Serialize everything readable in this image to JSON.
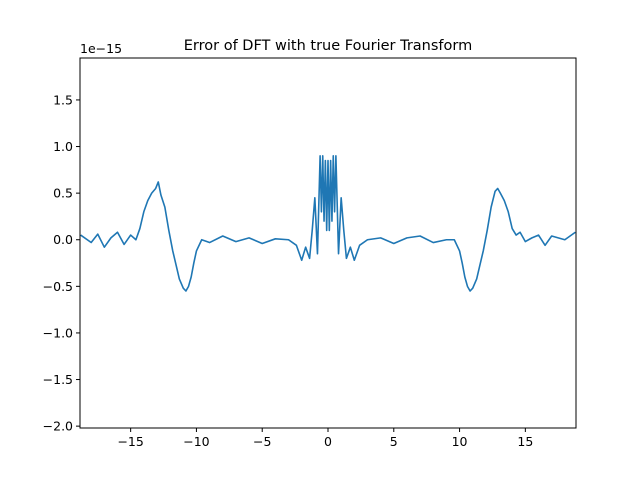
{
  "chart_data": {
    "type": "line",
    "title": "Error of DFT with true Fourier Transform",
    "xlabel": "",
    "ylabel": "",
    "y_scale_label": "1e−15",
    "xlim": [
      -18.85,
      18.85
    ],
    "ylim": [
      -2.02,
      1.95
    ],
    "x_ticks": [
      -15,
      -10,
      -5,
      0,
      5,
      10,
      15
    ],
    "x_tick_labels": [
      "−15",
      "−10",
      "−5",
      "0",
      "5",
      "10",
      "15"
    ],
    "y_ticks": [
      -2.0,
      -1.5,
      -1.0,
      -0.5,
      0.0,
      0.5,
      1.0,
      1.5
    ],
    "y_tick_labels": [
      "−2.0",
      "−1.5",
      "−1.0",
      "−0.5",
      "0.0",
      "0.5",
      "1.0",
      "1.5"
    ],
    "grid": false,
    "legend": "none",
    "series": [
      {
        "color": "#1f77b4",
        "x": [
          -18.8,
          -18.0,
          -17.5,
          -17.0,
          -16.5,
          -16.0,
          -15.5,
          -15.0,
          -14.6,
          -14.3,
          -14.0,
          -13.7,
          -13.4,
          -13.1,
          -12.9,
          -12.7,
          -12.4,
          -12.1,
          -11.8,
          -11.5,
          -11.3,
          -11.0,
          -10.8,
          -10.6,
          -10.4,
          -10.2,
          -10.0,
          -9.6,
          -9.0,
          -8.0,
          -7.0,
          -6.0,
          -5.0,
          -4.0,
          -3.0,
          -2.4,
          -2.0,
          -1.7,
          -1.4,
          -1.2,
          -1.0,
          -0.8,
          -0.6,
          -0.5,
          -0.4,
          -0.3,
          -0.2,
          -0.1,
          0.0,
          0.1,
          0.2,
          0.3,
          0.4,
          0.5,
          0.6,
          0.8,
          1.0,
          1.2,
          1.4,
          1.7,
          2.0,
          2.4,
          3.0,
          4.0,
          5.0,
          6.0,
          7.0,
          8.0,
          9.0,
          9.6,
          10.0,
          10.2,
          10.4,
          10.6,
          10.8,
          11.0,
          11.3,
          11.5,
          11.8,
          12.1,
          12.4,
          12.7,
          12.9,
          13.1,
          13.4,
          13.7,
          14.0,
          14.3,
          14.6,
          15.0,
          15.5,
          16.0,
          16.5,
          17.0,
          17.5,
          18.0,
          18.8
        ],
        "values": [
          0.05,
          -0.03,
          0.06,
          -0.08,
          0.02,
          0.08,
          -0.05,
          0.05,
          0.0,
          0.12,
          0.3,
          0.42,
          0.5,
          0.55,
          0.62,
          0.48,
          0.35,
          0.1,
          -0.12,
          -0.3,
          -0.42,
          -0.52,
          -0.55,
          -0.5,
          -0.4,
          -0.25,
          -0.12,
          0.0,
          -0.03,
          0.04,
          -0.02,
          0.02,
          -0.04,
          0.01,
          0.0,
          -0.06,
          -0.22,
          -0.08,
          -0.2,
          0.1,
          0.45,
          -0.15,
          0.9,
          0.3,
          0.9,
          0.2,
          0.85,
          0.1,
          0.85,
          0.1,
          0.85,
          0.2,
          0.9,
          0.3,
          0.9,
          -0.15,
          0.45,
          0.1,
          -0.2,
          -0.08,
          -0.22,
          -0.06,
          0.0,
          0.02,
          -0.04,
          0.02,
          0.04,
          -0.03,
          0.0,
          0.0,
          -0.12,
          -0.25,
          -0.4,
          -0.5,
          -0.55,
          -0.52,
          -0.42,
          -0.3,
          -0.12,
          0.1,
          0.35,
          0.52,
          0.55,
          0.5,
          0.42,
          0.3,
          0.12,
          0.05,
          0.08,
          -0.02,
          0.02,
          0.05,
          -0.06,
          0.04,
          0.02,
          0.0,
          0.08
        ]
      }
    ]
  }
}
